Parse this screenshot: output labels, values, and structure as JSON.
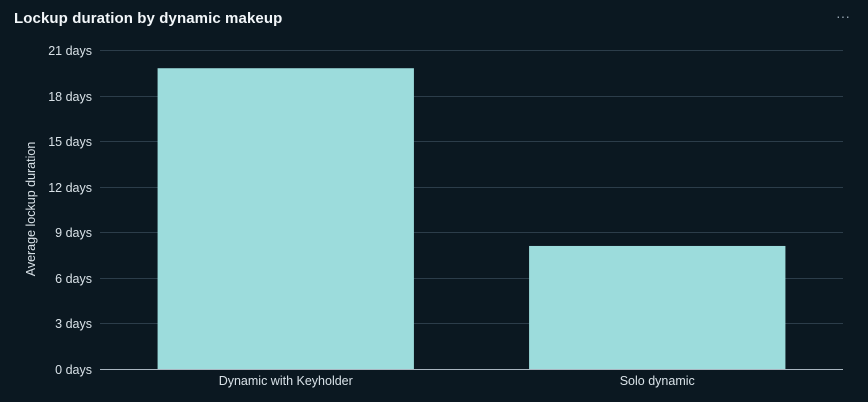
{
  "header": {
    "title": "Lockup duration by dynamic makeup",
    "menu_icon": "more-horizontal-icon",
    "menu_glyph": "···"
  },
  "colors": {
    "background": "#0b1821",
    "bar": "#9cdcdc"
  },
  "chart_data": {
    "type": "bar",
    "title": "Lockup duration by dynamic makeup",
    "categories": [
      "Dynamic with Keyholder",
      "Solo dynamic"
    ],
    "values": [
      19.8,
      8.1
    ],
    "xlabel": "",
    "ylabel": "Average lockup duration",
    "ylim": [
      0,
      21
    ],
    "yticks": [
      0,
      3,
      6,
      9,
      12,
      15,
      18,
      21
    ],
    "ytick_labels": [
      "0 days",
      "3 days",
      "6 days",
      "9 days",
      "12 days",
      "15 days",
      "18 days",
      "21 days"
    ],
    "grid": true,
    "legend": "none"
  }
}
